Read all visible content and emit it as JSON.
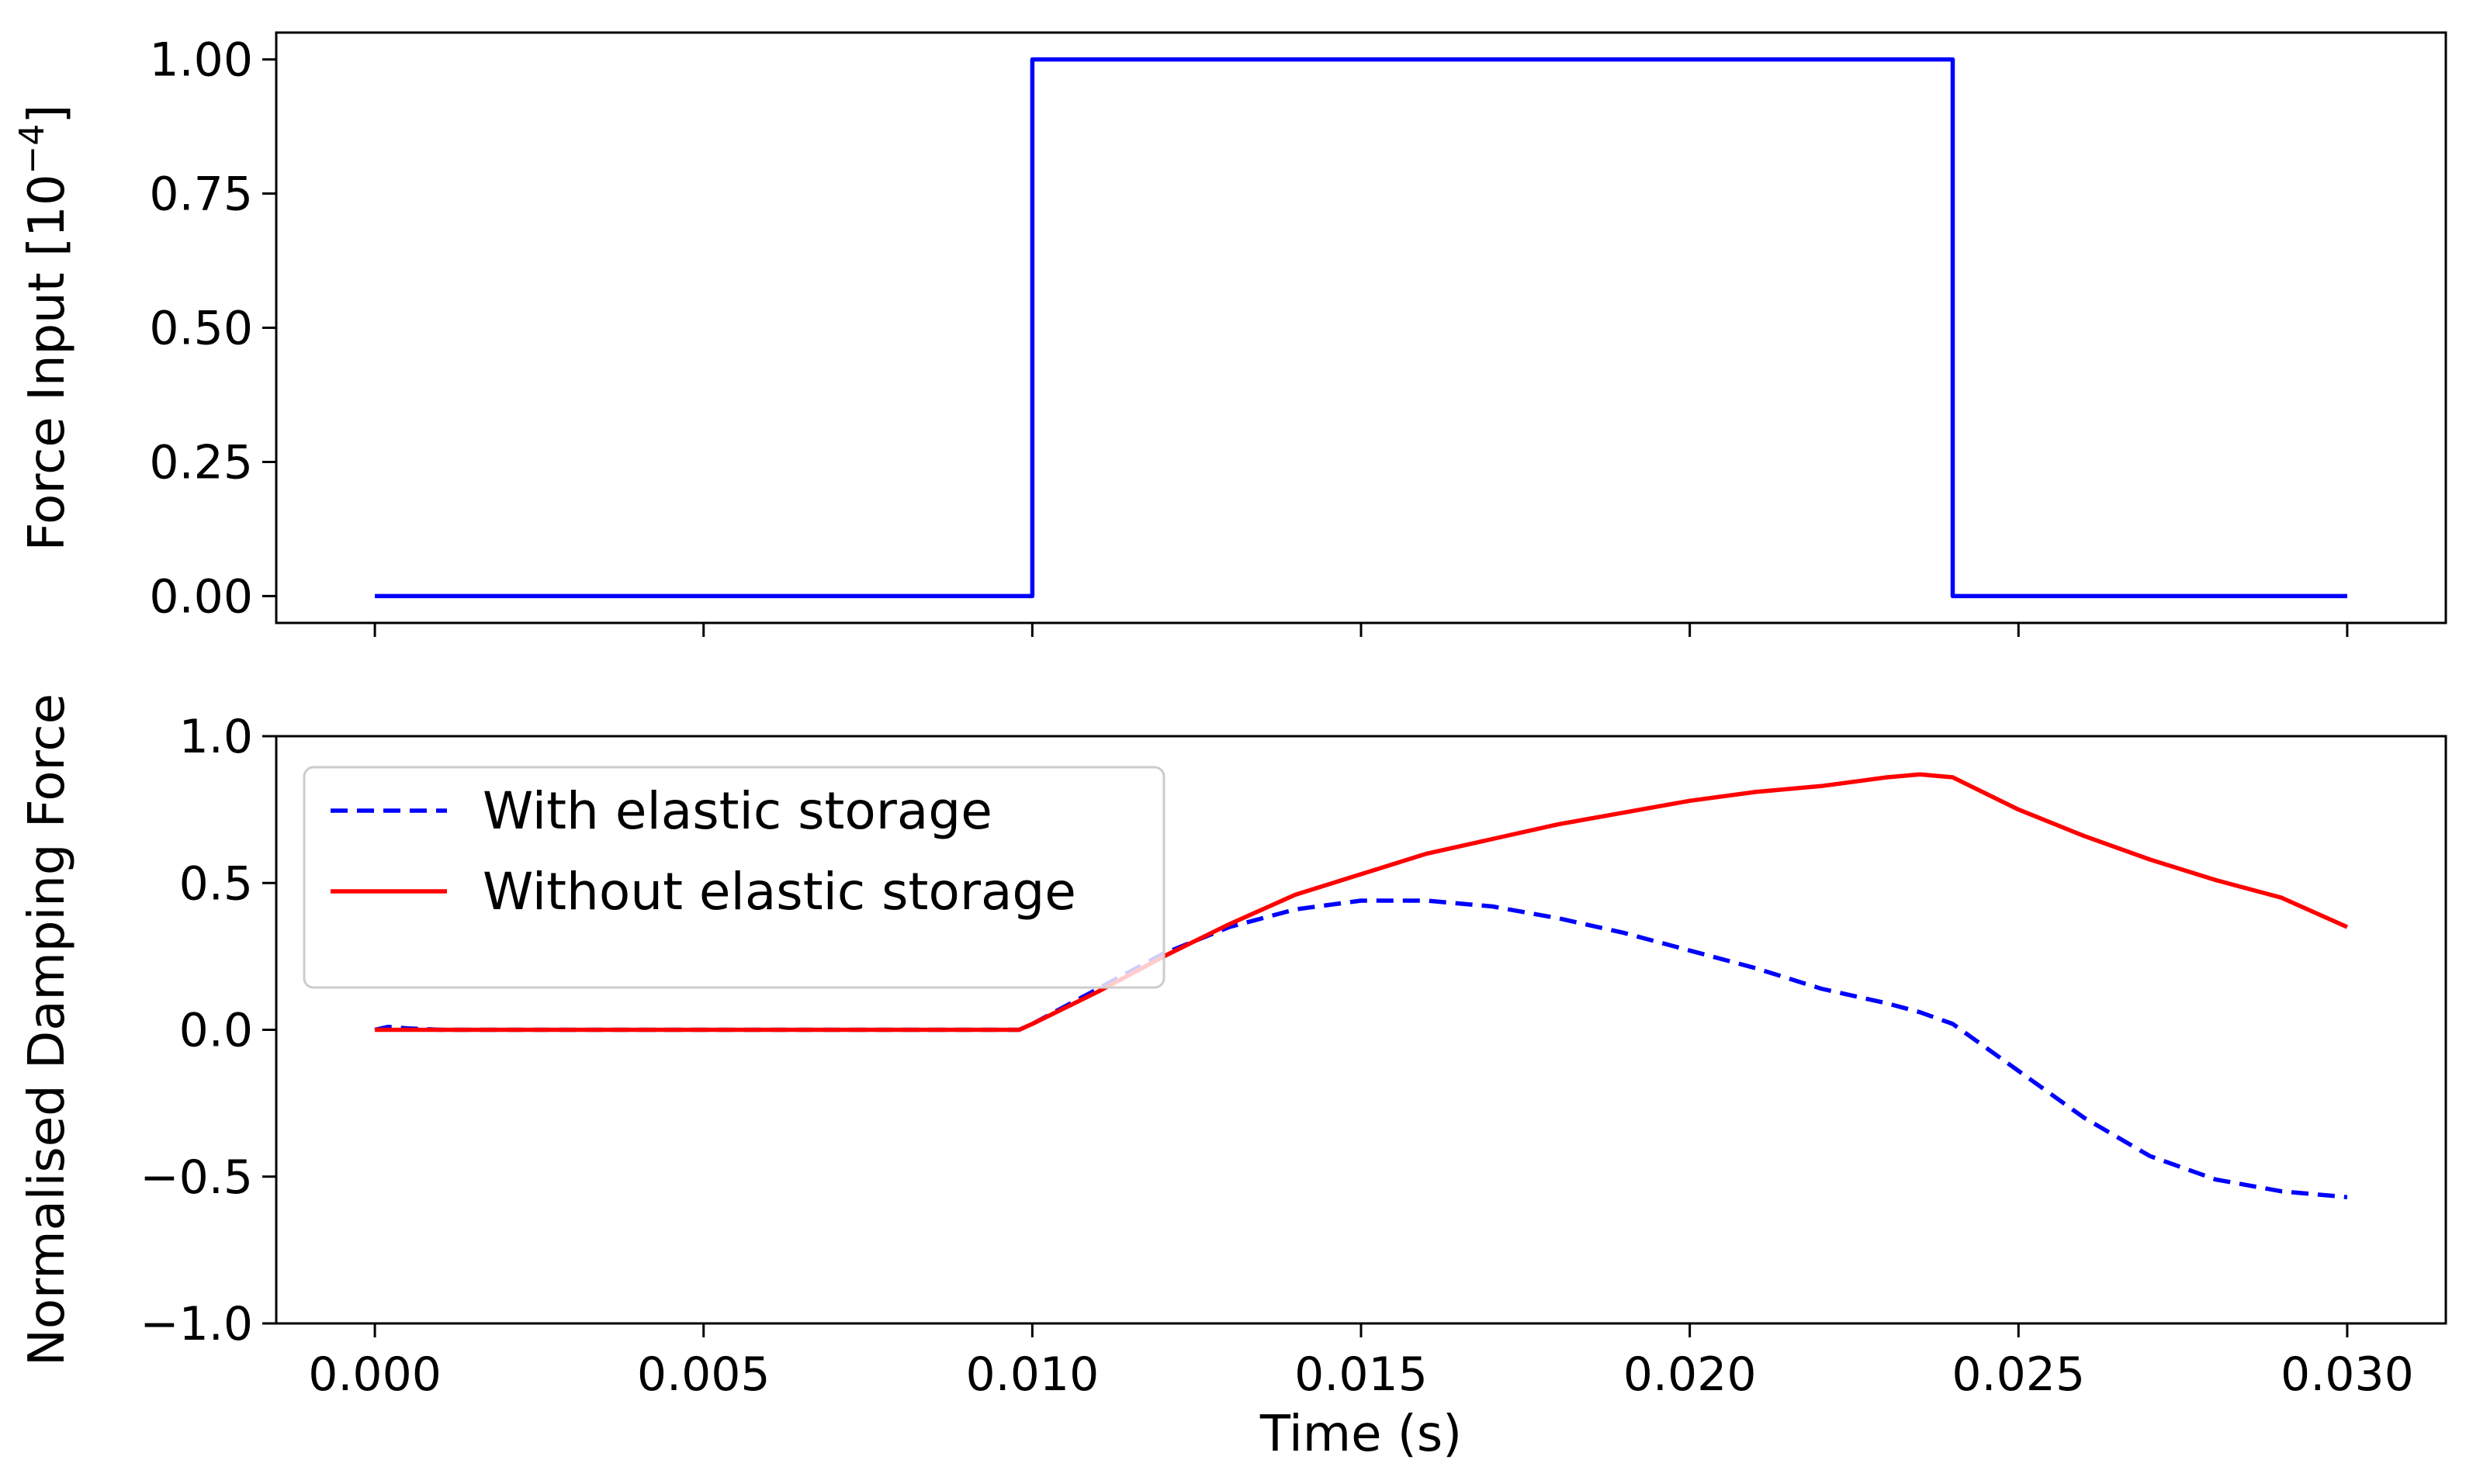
{
  "chart_data": [
    {
      "type": "line",
      "ylabel": "Force Input [10",
      "ylabel_exponent": "−4",
      "ylabel_suffix": "]",
      "xlim": [
        -0.0015,
        0.0315
      ],
      "ylim": [
        -0.05,
        1.05
      ],
      "xticks": [
        0.0,
        0.005,
        0.01,
        0.015,
        0.02,
        0.025,
        0.03
      ],
      "yticks": [
        0.0,
        0.25,
        0.5,
        0.75,
        1.0
      ],
      "ytick_labels": [
        "0.00",
        "0.25",
        "0.50",
        "0.75",
        "1.00"
      ],
      "series": [
        {
          "color": "#0000ff",
          "style": "solid",
          "x": [
            0.0,
            0.01,
            0.01,
            0.024,
            0.024,
            0.03
          ],
          "y": [
            0.0,
            0.0,
            1.0,
            1.0,
            0.0,
            0.0
          ]
        }
      ]
    },
    {
      "type": "line",
      "xlabel": "Time (s)",
      "ylabel": "Normalised Damping Force",
      "xlim": [
        -0.0015,
        0.0315
      ],
      "ylim": [
        -1.0,
        1.0
      ],
      "xticks": [
        0.0,
        0.005,
        0.01,
        0.015,
        0.02,
        0.025,
        0.03
      ],
      "xtick_labels": [
        "0.000",
        "0.005",
        "0.010",
        "0.015",
        "0.020",
        "0.025",
        "0.030"
      ],
      "yticks": [
        -1.0,
        -0.5,
        0.0,
        0.5,
        1.0
      ],
      "ytick_labels": [
        "−1.0",
        "−0.5",
        "0.0",
        "0.5",
        "1.0"
      ],
      "legend_position": "upper-left",
      "series": [
        {
          "name": "With elastic storage",
          "color": "#0000ff",
          "style": "dashed",
          "x": [
            0.0,
            0.0002,
            0.0005,
            0.001,
            0.005,
            0.0098,
            0.01,
            0.011,
            0.012,
            0.013,
            0.014,
            0.015,
            0.016,
            0.017,
            0.018,
            0.019,
            0.02,
            0.021,
            0.022,
            0.023,
            0.0235,
            0.024,
            0.025,
            0.026,
            0.027,
            0.028,
            0.029,
            0.03
          ],
          "y": [
            0.0,
            0.01,
            0.005,
            0.0,
            0.0,
            0.0,
            0.02,
            0.14,
            0.26,
            0.35,
            0.41,
            0.44,
            0.44,
            0.42,
            0.38,
            0.33,
            0.27,
            0.21,
            0.14,
            0.09,
            0.06,
            0.02,
            -0.14,
            -0.3,
            -0.43,
            -0.51,
            -0.55,
            -0.57
          ]
        },
        {
          "name": "Without elastic storage",
          "color": "#ff0000",
          "style": "solid",
          "x": [
            0.0,
            0.005,
            0.0098,
            0.01,
            0.011,
            0.012,
            0.013,
            0.014,
            0.015,
            0.016,
            0.017,
            0.018,
            0.019,
            0.02,
            0.021,
            0.022,
            0.023,
            0.0235,
            0.024,
            0.025,
            0.026,
            0.027,
            0.028,
            0.029,
            0.03
          ],
          "y": [
            0.0,
            0.0,
            0.0,
            0.02,
            0.13,
            0.25,
            0.36,
            0.46,
            0.53,
            0.6,
            0.65,
            0.7,
            0.74,
            0.78,
            0.81,
            0.83,
            0.86,
            0.87,
            0.86,
            0.75,
            0.66,
            0.58,
            0.51,
            0.45,
            0.35
          ]
        }
      ]
    }
  ]
}
